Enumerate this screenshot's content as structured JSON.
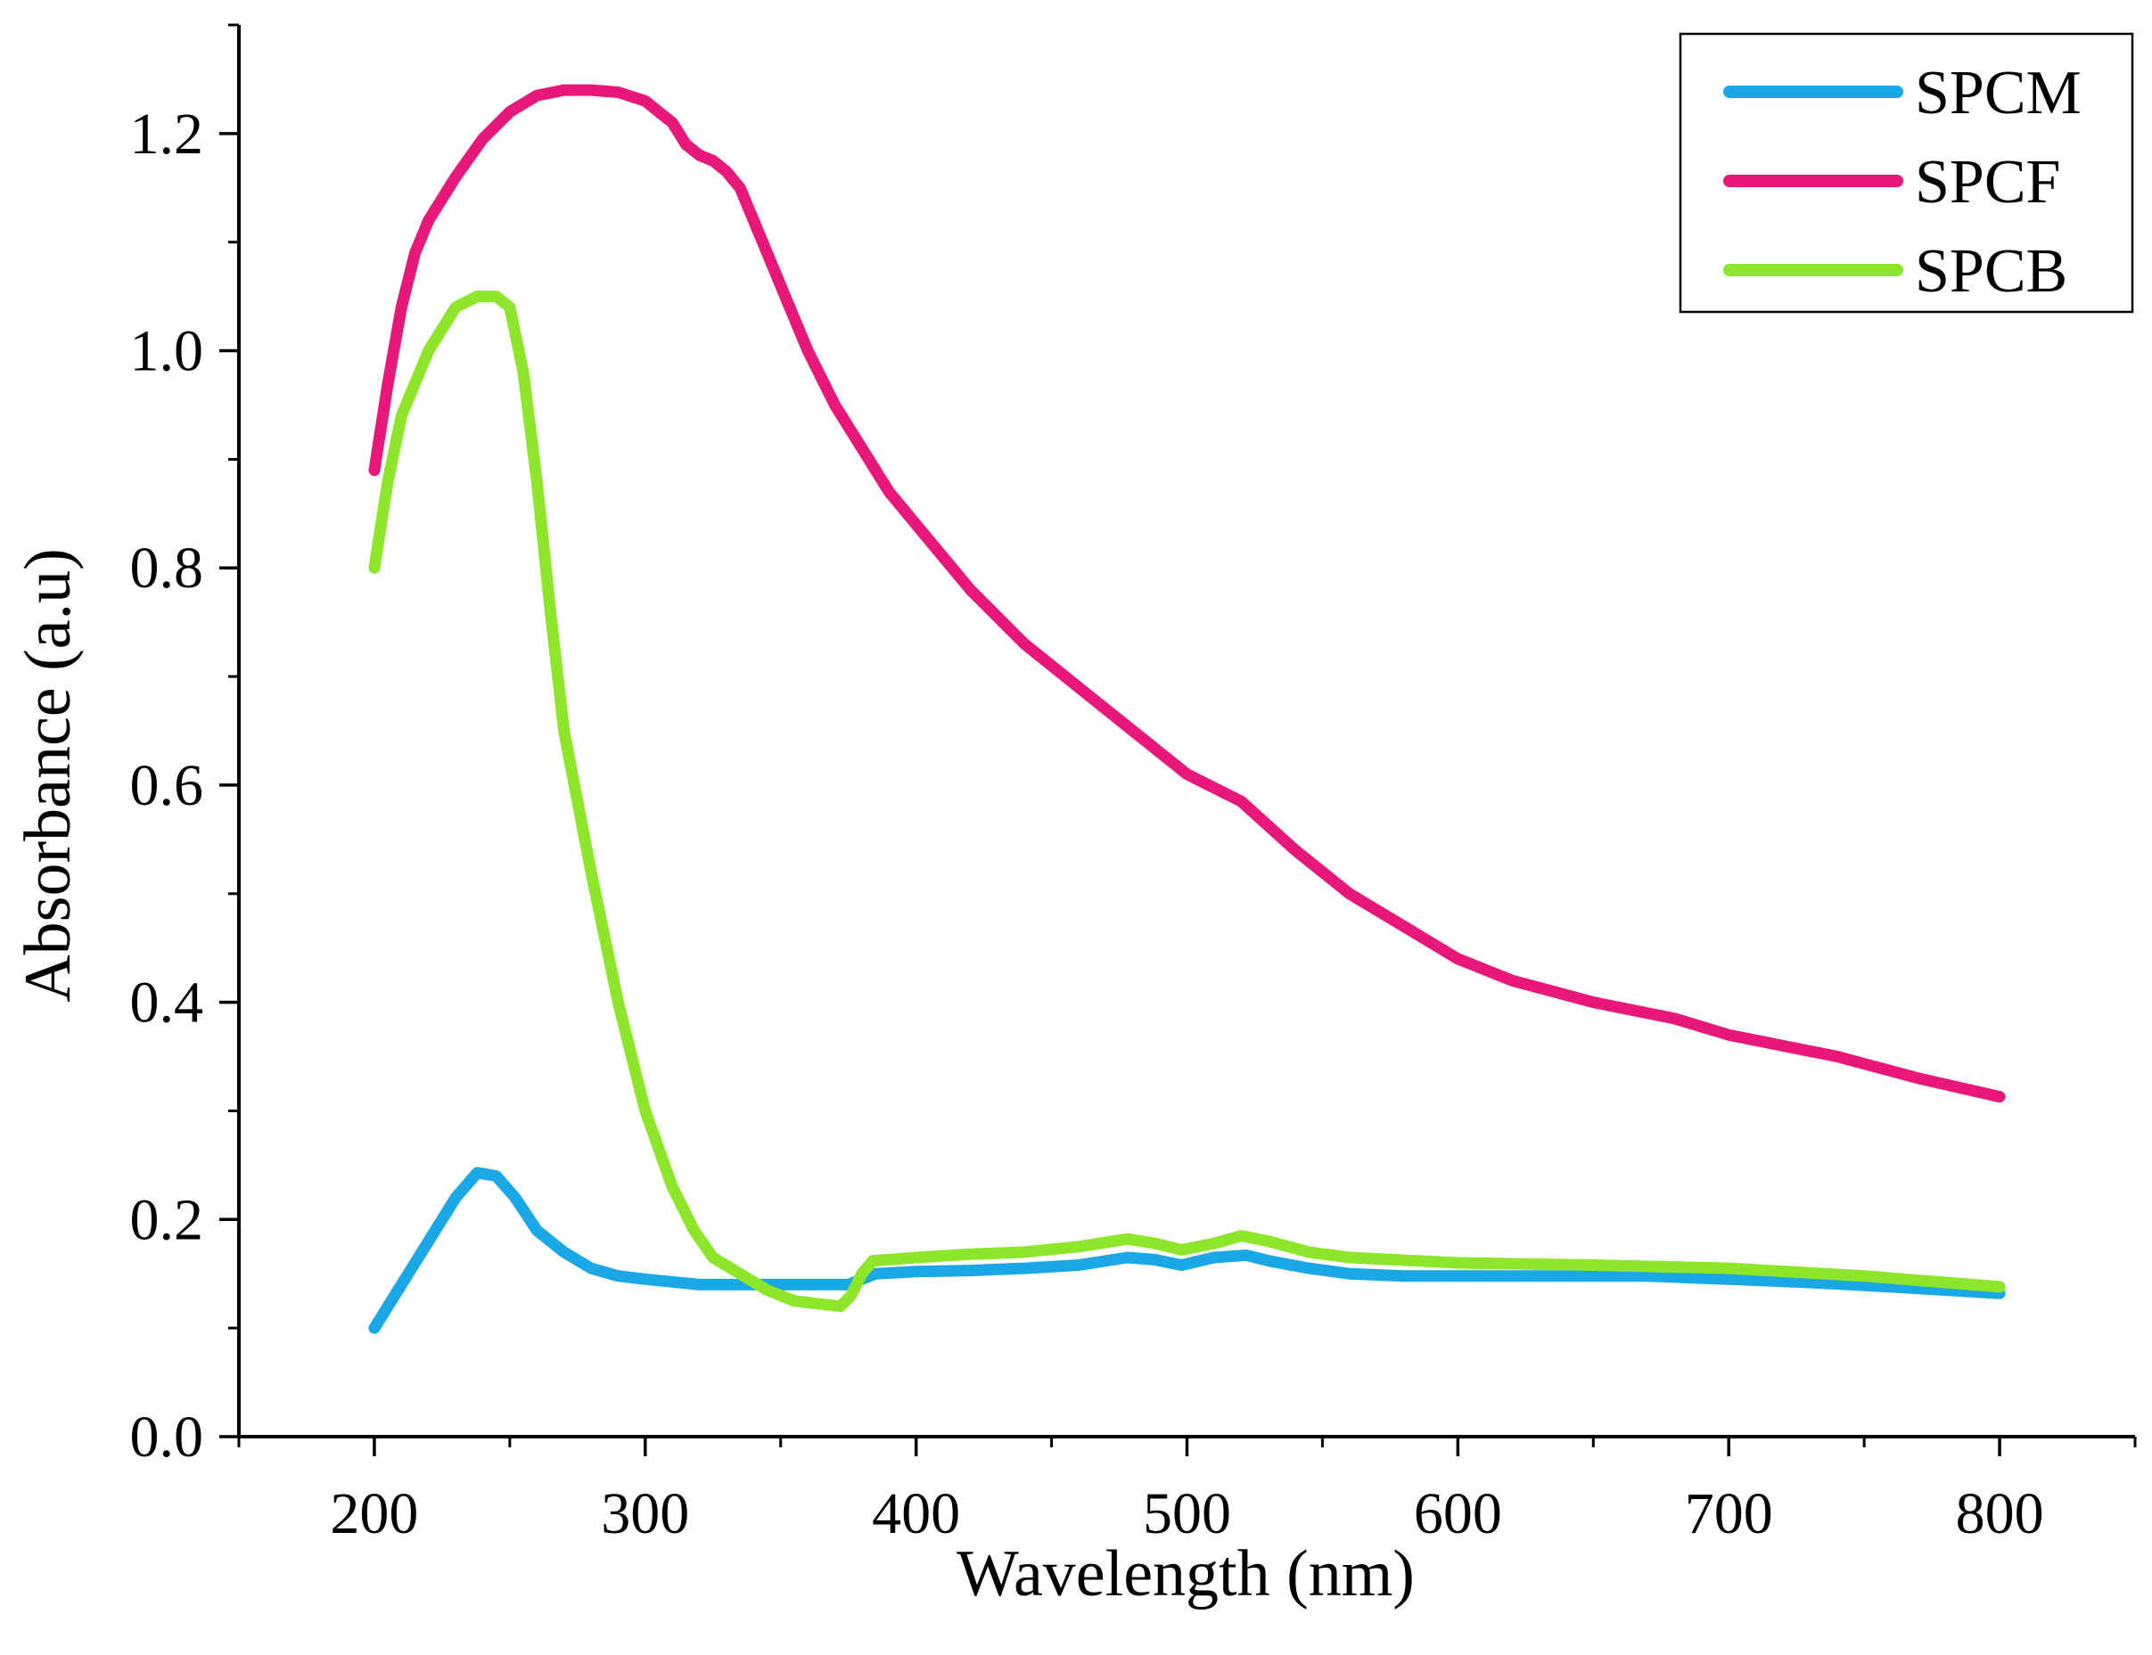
{
  "chart_data": {
    "type": "line",
    "title": "",
    "xlabel": "Wavelength (nm)",
    "ylabel": "Absorbance (a.u)",
    "xlim": [
      150,
      850
    ],
    "ylim": [
      0.0,
      1.3
    ],
    "grid": false,
    "legend_position": "top-right",
    "x_ticks": [
      200,
      300,
      400,
      500,
      600,
      700,
      800
    ],
    "x_tick_labels": [
      "200",
      "300",
      "400",
      "500",
      "600",
      "700",
      "800"
    ],
    "y_ticks": [
      0.0,
      0.2,
      0.4,
      0.6,
      0.8,
      1.0,
      1.2
    ],
    "y_tick_labels": [
      "0.0",
      "0.2",
      "0.4",
      "0.6",
      "0.8",
      "1.0",
      "1.2"
    ],
    "x_minor_step": 50,
    "y_minor_step": 0.1,
    "series": [
      {
        "name": "SPCM",
        "color": "#1aa7e6",
        "x": [
          200,
          210,
          220,
          230,
          238,
          245,
          252,
          260,
          270,
          280,
          290,
          300,
          320,
          340,
          360,
          375,
          385,
          400,
          420,
          440,
          460,
          478,
          488,
          498,
          510,
          522,
          530,
          545,
          560,
          580,
          600,
          620,
          650,
          670,
          700,
          730,
          760,
          780,
          800
        ],
        "y": [
          0.1,
          0.14,
          0.18,
          0.22,
          0.243,
          0.24,
          0.22,
          0.19,
          0.17,
          0.155,
          0.148,
          0.145,
          0.14,
          0.14,
          0.14,
          0.14,
          0.15,
          0.152,
          0.153,
          0.155,
          0.158,
          0.165,
          0.163,
          0.158,
          0.165,
          0.167,
          0.162,
          0.155,
          0.15,
          0.148,
          0.148,
          0.148,
          0.148,
          0.148,
          0.145,
          0.142,
          0.138,
          0.135,
          0.132
        ]
      },
      {
        "name": "SPCF",
        "color": "#e8187a",
        "x": [
          200,
          205,
          210,
          215,
          220,
          230,
          240,
          250,
          260,
          270,
          280,
          290,
          300,
          310,
          315,
          320,
          325,
          330,
          335,
          340,
          350,
          360,
          370,
          380,
          390,
          400,
          420,
          440,
          460,
          480,
          500,
          520,
          540,
          560,
          580,
          600,
          620,
          650,
          680,
          700,
          740,
          770,
          800
        ],
        "y": [
          0.89,
          0.97,
          1.04,
          1.09,
          1.12,
          1.16,
          1.195,
          1.22,
          1.235,
          1.24,
          1.24,
          1.238,
          1.23,
          1.21,
          1.19,
          1.18,
          1.175,
          1.165,
          1.15,
          1.12,
          1.06,
          1.0,
          0.95,
          0.91,
          0.87,
          0.84,
          0.78,
          0.73,
          0.69,
          0.65,
          0.61,
          0.585,
          0.54,
          0.5,
          0.47,
          0.44,
          0.42,
          0.4,
          0.385,
          0.37,
          0.35,
          0.33,
          0.313
        ]
      },
      {
        "name": "SPCB",
        "color": "#8de62a",
        "x": [
          200,
          205,
          210,
          220,
          230,
          238,
          245,
          250,
          255,
          260,
          265,
          270,
          280,
          290,
          300,
          310,
          318,
          325,
          335,
          345,
          355,
          365,
          372,
          376,
          380,
          384,
          390,
          400,
          420,
          440,
          460,
          478,
          488,
          498,
          510,
          520,
          530,
          545,
          560,
          600,
          650,
          700,
          750,
          800
        ],
        "y": [
          0.8,
          0.88,
          0.94,
          1.0,
          1.04,
          1.05,
          1.05,
          1.04,
          0.98,
          0.88,
          0.76,
          0.65,
          0.52,
          0.4,
          0.3,
          0.23,
          0.19,
          0.165,
          0.15,
          0.135,
          0.125,
          0.122,
          0.12,
          0.13,
          0.15,
          0.162,
          0.163,
          0.165,
          0.168,
          0.17,
          0.175,
          0.182,
          0.178,
          0.172,
          0.178,
          0.185,
          0.18,
          0.17,
          0.165,
          0.16,
          0.158,
          0.155,
          0.148,
          0.138
        ]
      }
    ]
  }
}
